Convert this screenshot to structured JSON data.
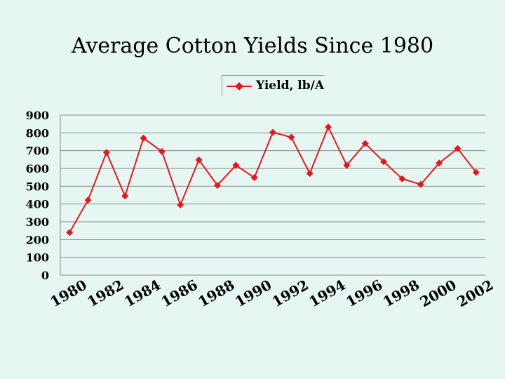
{
  "chart_data": {
    "type": "line",
    "title": "Average Cotton Yields Since 1980",
    "xlabel": "",
    "ylabel": "",
    "ylim": [
      0,
      900
    ],
    "yticks": [
      0,
      100,
      200,
      300,
      400,
      500,
      600,
      700,
      800,
      900
    ],
    "xticks": [
      1980,
      1982,
      1984,
      1986,
      1988,
      1990,
      1992,
      1994,
      1996,
      1998,
      2000,
      2002
    ],
    "legend_position": "top-center",
    "grid": true,
    "x": [
      1980,
      1981,
      1982,
      1983,
      1984,
      1985,
      1986,
      1987,
      1988,
      1989,
      1990,
      1991,
      1992,
      1993,
      1994,
      1995,
      1996,
      1997,
      1998,
      1999,
      2000,
      2001,
      2002
    ],
    "series": [
      {
        "name": "Yield, lb/A",
        "color": "#e8161b",
        "marker": "diamond",
        "values": [
          240,
          422,
          690,
          445,
          770,
          695,
          395,
          648,
          505,
          618,
          548,
          803,
          775,
          572,
          833,
          618,
          740,
          638,
          542,
          510,
          630,
          712,
          578
        ]
      }
    ]
  }
}
